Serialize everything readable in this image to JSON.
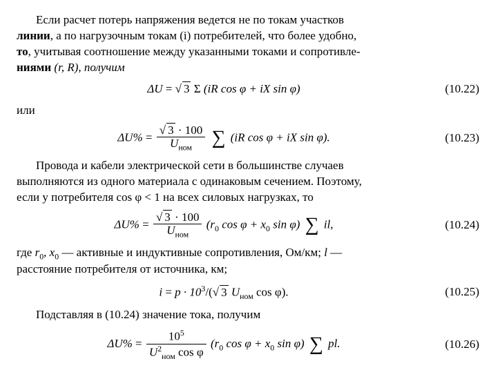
{
  "para1": {
    "line1_lead": "Если расчет потерь напряжения ведется не по токам участков",
    "line2_bold": "линии",
    "line2_rest": ", а по нагрузочным токам (i) потребителей, что более удобно,",
    "line3_bold": "то",
    "line3_rest": ", учитывая соотношение между указанными токами и сопротивле-",
    "line4_bold": "ниями",
    "line4_rest": " (r, R), получим"
  },
  "eq22": {
    "lhs": "ΔU",
    "eq": " = ",
    "radical": "√",
    "rad_arg": "3",
    "sigma": " Σ ",
    "body": "(iR cos φ + iX sin φ)",
    "num": "(10.22)"
  },
  "word_ili": "или",
  "eq23": {
    "lhs": "ΔU%",
    "eq": " = ",
    "frac_num_rad": "√",
    "frac_num_rad_arg": "3",
    "frac_num_rest": " · 100",
    "frac_den_U": "U",
    "frac_den_sub": "ном",
    "body": "(iR cos φ + iX sin φ).",
    "num": "(10.23)"
  },
  "para2": {
    "l1": "Провода и кабели электрической сети в большинстве случаев",
    "l2": "выполняются из одного материала с одинаковым сечением. Поэтому,",
    "l3": "если у потребителя cos φ < 1 на всех силовых нагрузках, то"
  },
  "eq24": {
    "lhs": "ΔU%",
    "eq": " = ",
    "frac_num_rad": "√",
    "frac_num_rad_arg": "3",
    "frac_num_rest": " · 100",
    "frac_den_U": "U",
    "frac_den_sub": "ном",
    "body_pre": "(r",
    "body_r0sub": "0",
    "body_mid1": " cos φ + x",
    "body_x0sub": "0",
    "body_mid2": " sin φ) ",
    "tail": "il,",
    "num": "(10.24)"
  },
  "para3": {
    "l1_a": "где ",
    "l1_r0": "r",
    "l1_r0sub": "0",
    "l1_b": ", ",
    "l1_x0": "x",
    "l1_x0sub": "0",
    "l1_c": " — активные и индуктивные сопротивления, Ом/км; ",
    "l1_l": "l",
    "l1_d": " —",
    "l2": "расстояние потребителя от источника, км;"
  },
  "eq25": {
    "lhs": "i",
    "eq": " = ",
    "body_a": "p · 10",
    "body_sup": "3",
    "body_b": "/(",
    "rad": "√",
    "rad_arg": "3",
    "body_c": " U",
    "body_sub": "ном",
    "body_d": " cos φ).",
    "num": "(10.25)"
  },
  "para4": "Подставляя в (10.24) значение тока, получим",
  "eq26": {
    "lhs": "ΔU%",
    "eq": " = ",
    "frac_num": "10",
    "frac_num_sup": "5",
    "frac_den_U": "U",
    "frac_den_sup": "2",
    "frac_den_sub": "ном",
    "frac_den_rest": " cos φ",
    "body_pre": "(r",
    "body_r0sub": "0",
    "body_mid1": " cos φ + x",
    "body_x0sub": "0",
    "body_mid2": " sin φ) ",
    "tail": "pl.",
    "num": "(10.26)"
  }
}
